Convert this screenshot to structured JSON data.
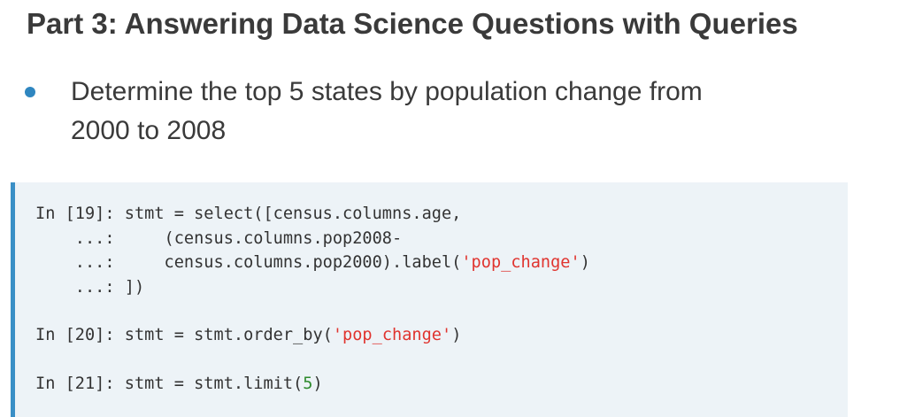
{
  "header": {
    "title": "Part 3: Answering Data Science Questions with Queries"
  },
  "bullets": [
    {
      "text": "Determine the top 5 states by population change from 2000 to 2008"
    }
  ],
  "code": {
    "cells": [
      {
        "lines": [
          [
            {
              "text": "In [19]: stmt = select([census.columns.age,"
            }
          ],
          [
            {
              "text": "    ...:     (census.columns.pop2008-"
            }
          ],
          [
            {
              "text": "    ...:     census.columns.pop2000).label("
            },
            {
              "text": "'pop_change'",
              "color": "#e0342f"
            },
            {
              "text": ")"
            }
          ],
          [
            {
              "text": "    ...: ])"
            }
          ]
        ]
      },
      {
        "lines": [
          [
            {
              "text": "In [20]: stmt = stmt.order_by("
            },
            {
              "text": "'pop_change'",
              "color": "#e0342f"
            },
            {
              "text": ")"
            }
          ]
        ]
      },
      {
        "lines": [
          [
            {
              "text": "In [21]: stmt = stmt.limit("
            },
            {
              "text": "5",
              "color": "#2e8b2e"
            },
            {
              "text": ")"
            }
          ]
        ]
      }
    ]
  }
}
